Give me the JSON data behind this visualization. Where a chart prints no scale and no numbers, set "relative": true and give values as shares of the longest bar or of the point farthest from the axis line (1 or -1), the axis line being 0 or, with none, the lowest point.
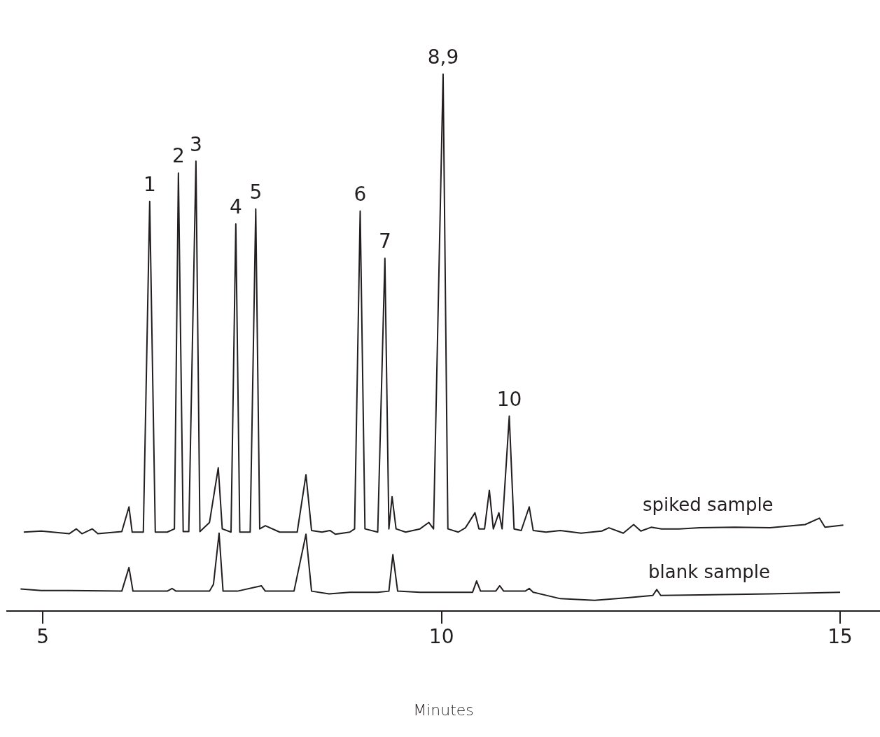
{
  "chart_data": {
    "type": "line",
    "relative": true,
    "xlabel": "Minutes",
    "xlim": [
      4.55,
      15.5
    ],
    "xticks": [
      5,
      10,
      15
    ],
    "grid": false,
    "legend": false,
    "marker": "none",
    "line_style": "solid",
    "series": [
      {
        "name": "spiked sample",
        "color": "#231f20",
        "x": [
          4.76,
          4.98,
          5.33,
          5.42,
          5.49,
          5.62,
          5.69,
          5.99,
          6.08,
          6.12,
          6.26,
          6.34,
          6.41,
          6.56,
          6.65,
          6.7,
          6.76,
          6.83,
          6.92,
          6.97,
          7.09,
          7.2,
          7.25,
          7.36,
          7.42,
          7.47,
          7.6,
          7.67,
          7.72,
          7.79,
          7.97,
          8.19,
          8.3,
          8.37,
          8.5,
          8.6,
          8.67,
          8.85,
          8.91,
          8.98,
          9.04,
          9.2,
          9.29,
          9.34,
          9.38,
          9.43,
          9.55,
          9.73,
          9.84,
          9.9,
          10.02,
          10.08,
          10.21,
          10.3,
          10.42,
          10.47,
          10.54,
          10.6,
          10.65,
          10.72,
          10.76,
          10.85,
          10.91,
          11.0,
          11.1,
          11.15,
          11.31,
          11.49,
          11.75,
          12.01,
          12.1,
          12.28,
          12.41,
          12.5,
          12.63,
          12.76,
          12.98,
          13.24,
          13.68,
          14.12,
          14.56,
          14.74,
          14.81,
          15.04
        ],
        "values": [
          0.147,
          0.149,
          0.144,
          0.153,
          0.144,
          0.153,
          0.144,
          0.148,
          0.194,
          0.147,
          0.147,
          0.763,
          0.147,
          0.147,
          0.153,
          0.816,
          0.148,
          0.148,
          0.838,
          0.148,
          0.165,
          0.267,
          0.153,
          0.147,
          0.721,
          0.147,
          0.147,
          0.749,
          0.153,
          0.159,
          0.147,
          0.147,
          0.254,
          0.15,
          0.147,
          0.15,
          0.143,
          0.147,
          0.153,
          0.745,
          0.153,
          0.147,
          0.657,
          0.153,
          0.213,
          0.153,
          0.147,
          0.153,
          0.165,
          0.153,
          1,
          0.153,
          0.147,
          0.155,
          0.183,
          0.153,
          0.153,
          0.225,
          0.153,
          0.183,
          0.153,
          0.363,
          0.153,
          0.15,
          0.194,
          0.15,
          0.147,
          0.15,
          0.145,
          0.149,
          0.155,
          0.145,
          0.161,
          0.149,
          0.156,
          0.153,
          0.153,
          0.155,
          0.156,
          0.155,
          0.161,
          0.173,
          0.156,
          0.16
        ]
      },
      {
        "name": "blank sample",
        "color": "#231f20",
        "x": [
          4.72,
          4.98,
          5.33,
          5.99,
          6.08,
          6.13,
          6.56,
          6.62,
          6.67,
          7.09,
          7.14,
          7.21,
          7.26,
          7.44,
          7.74,
          7.79,
          8.15,
          8.3,
          8.37,
          8.59,
          8.85,
          9.2,
          9.34,
          9.39,
          9.45,
          9.73,
          10.08,
          10.39,
          10.44,
          10.49,
          10.68,
          10.73,
          10.78,
          11.05,
          11.1,
          11.15,
          11.49,
          11.92,
          12.36,
          12.65,
          12.7,
          12.75,
          13.24,
          14.12,
          15.0
        ],
        "values": [
          0.041,
          0.038,
          0.038,
          0.037,
          0.081,
          0.037,
          0.037,
          0.042,
          0.037,
          0.037,
          0.05,
          0.145,
          0.037,
          0.037,
          0.047,
          0.037,
          0.037,
          0.143,
          0.037,
          0.032,
          0.035,
          0.035,
          0.037,
          0.105,
          0.037,
          0.035,
          0.035,
          0.035,
          0.056,
          0.037,
          0.037,
          0.047,
          0.037,
          0.037,
          0.042,
          0.035,
          0.023,
          0.02,
          0.025,
          0.029,
          0.04,
          0.029,
          0.03,
          0.032,
          0.035
        ]
      }
    ],
    "annotations": [
      {
        "text": "1",
        "x": 6.34,
        "y": 0.763
      },
      {
        "text": "2",
        "x": 6.7,
        "y": 0.816
      },
      {
        "text": "3",
        "x": 6.92,
        "y": 0.838
      },
      {
        "text": "4",
        "x": 7.42,
        "y": 0.721
      },
      {
        "text": "5",
        "x": 7.67,
        "y": 0.749
      },
      {
        "text": "6",
        "x": 8.98,
        "y": 0.745
      },
      {
        "text": "7",
        "x": 9.29,
        "y": 0.657
      },
      {
        "text": "8,9",
        "x": 10.02,
        "y": 1
      },
      {
        "text": "10",
        "x": 10.85,
        "y": 0.363
      }
    ]
  }
}
